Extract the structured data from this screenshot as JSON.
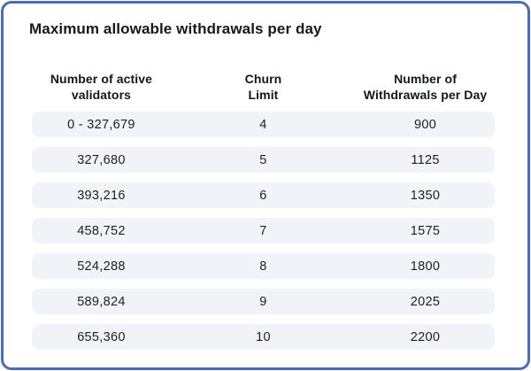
{
  "title": "Maximum allowable withdrawals per day",
  "colors": {
    "card_border": "#4a6db5",
    "row_background": "#f1f3f9",
    "text": "#1b1e24"
  },
  "table": {
    "headers": [
      {
        "line1": "Number of active",
        "line2": "validators"
      },
      {
        "line1": "Churn",
        "line2": "Limit"
      },
      {
        "line1": "Number of",
        "line2": "Withdrawals per Day"
      }
    ],
    "rows": [
      {
        "validators": "0 - 327,679",
        "churn": "4",
        "withdrawals": "900"
      },
      {
        "validators": "327,680",
        "churn": "5",
        "withdrawals": "1125"
      },
      {
        "validators": "393,216",
        "churn": "6",
        "withdrawals": "1350"
      },
      {
        "validators": "458,752",
        "churn": "7",
        "withdrawals": "1575"
      },
      {
        "validators": "524,288",
        "churn": "8",
        "withdrawals": "1800"
      },
      {
        "validators": "589,824",
        "churn": "9",
        "withdrawals": "2025"
      },
      {
        "validators": "655,360",
        "churn": "10",
        "withdrawals": "2200"
      }
    ]
  },
  "chart_data": {
    "type": "table",
    "title": "Maximum allowable withdrawals per day",
    "columns": [
      "Number of active validators",
      "Churn Limit",
      "Number of Withdrawals per Day"
    ],
    "rows": [
      [
        "0 - 327,679",
        4,
        900
      ],
      [
        "327,680",
        5,
        1125
      ],
      [
        "393,216",
        6,
        1350
      ],
      [
        "458,752",
        7,
        1575
      ],
      [
        "524,288",
        8,
        1800
      ],
      [
        "589,824",
        9,
        2025
      ],
      [
        "655,360",
        10,
        2200
      ]
    ]
  }
}
